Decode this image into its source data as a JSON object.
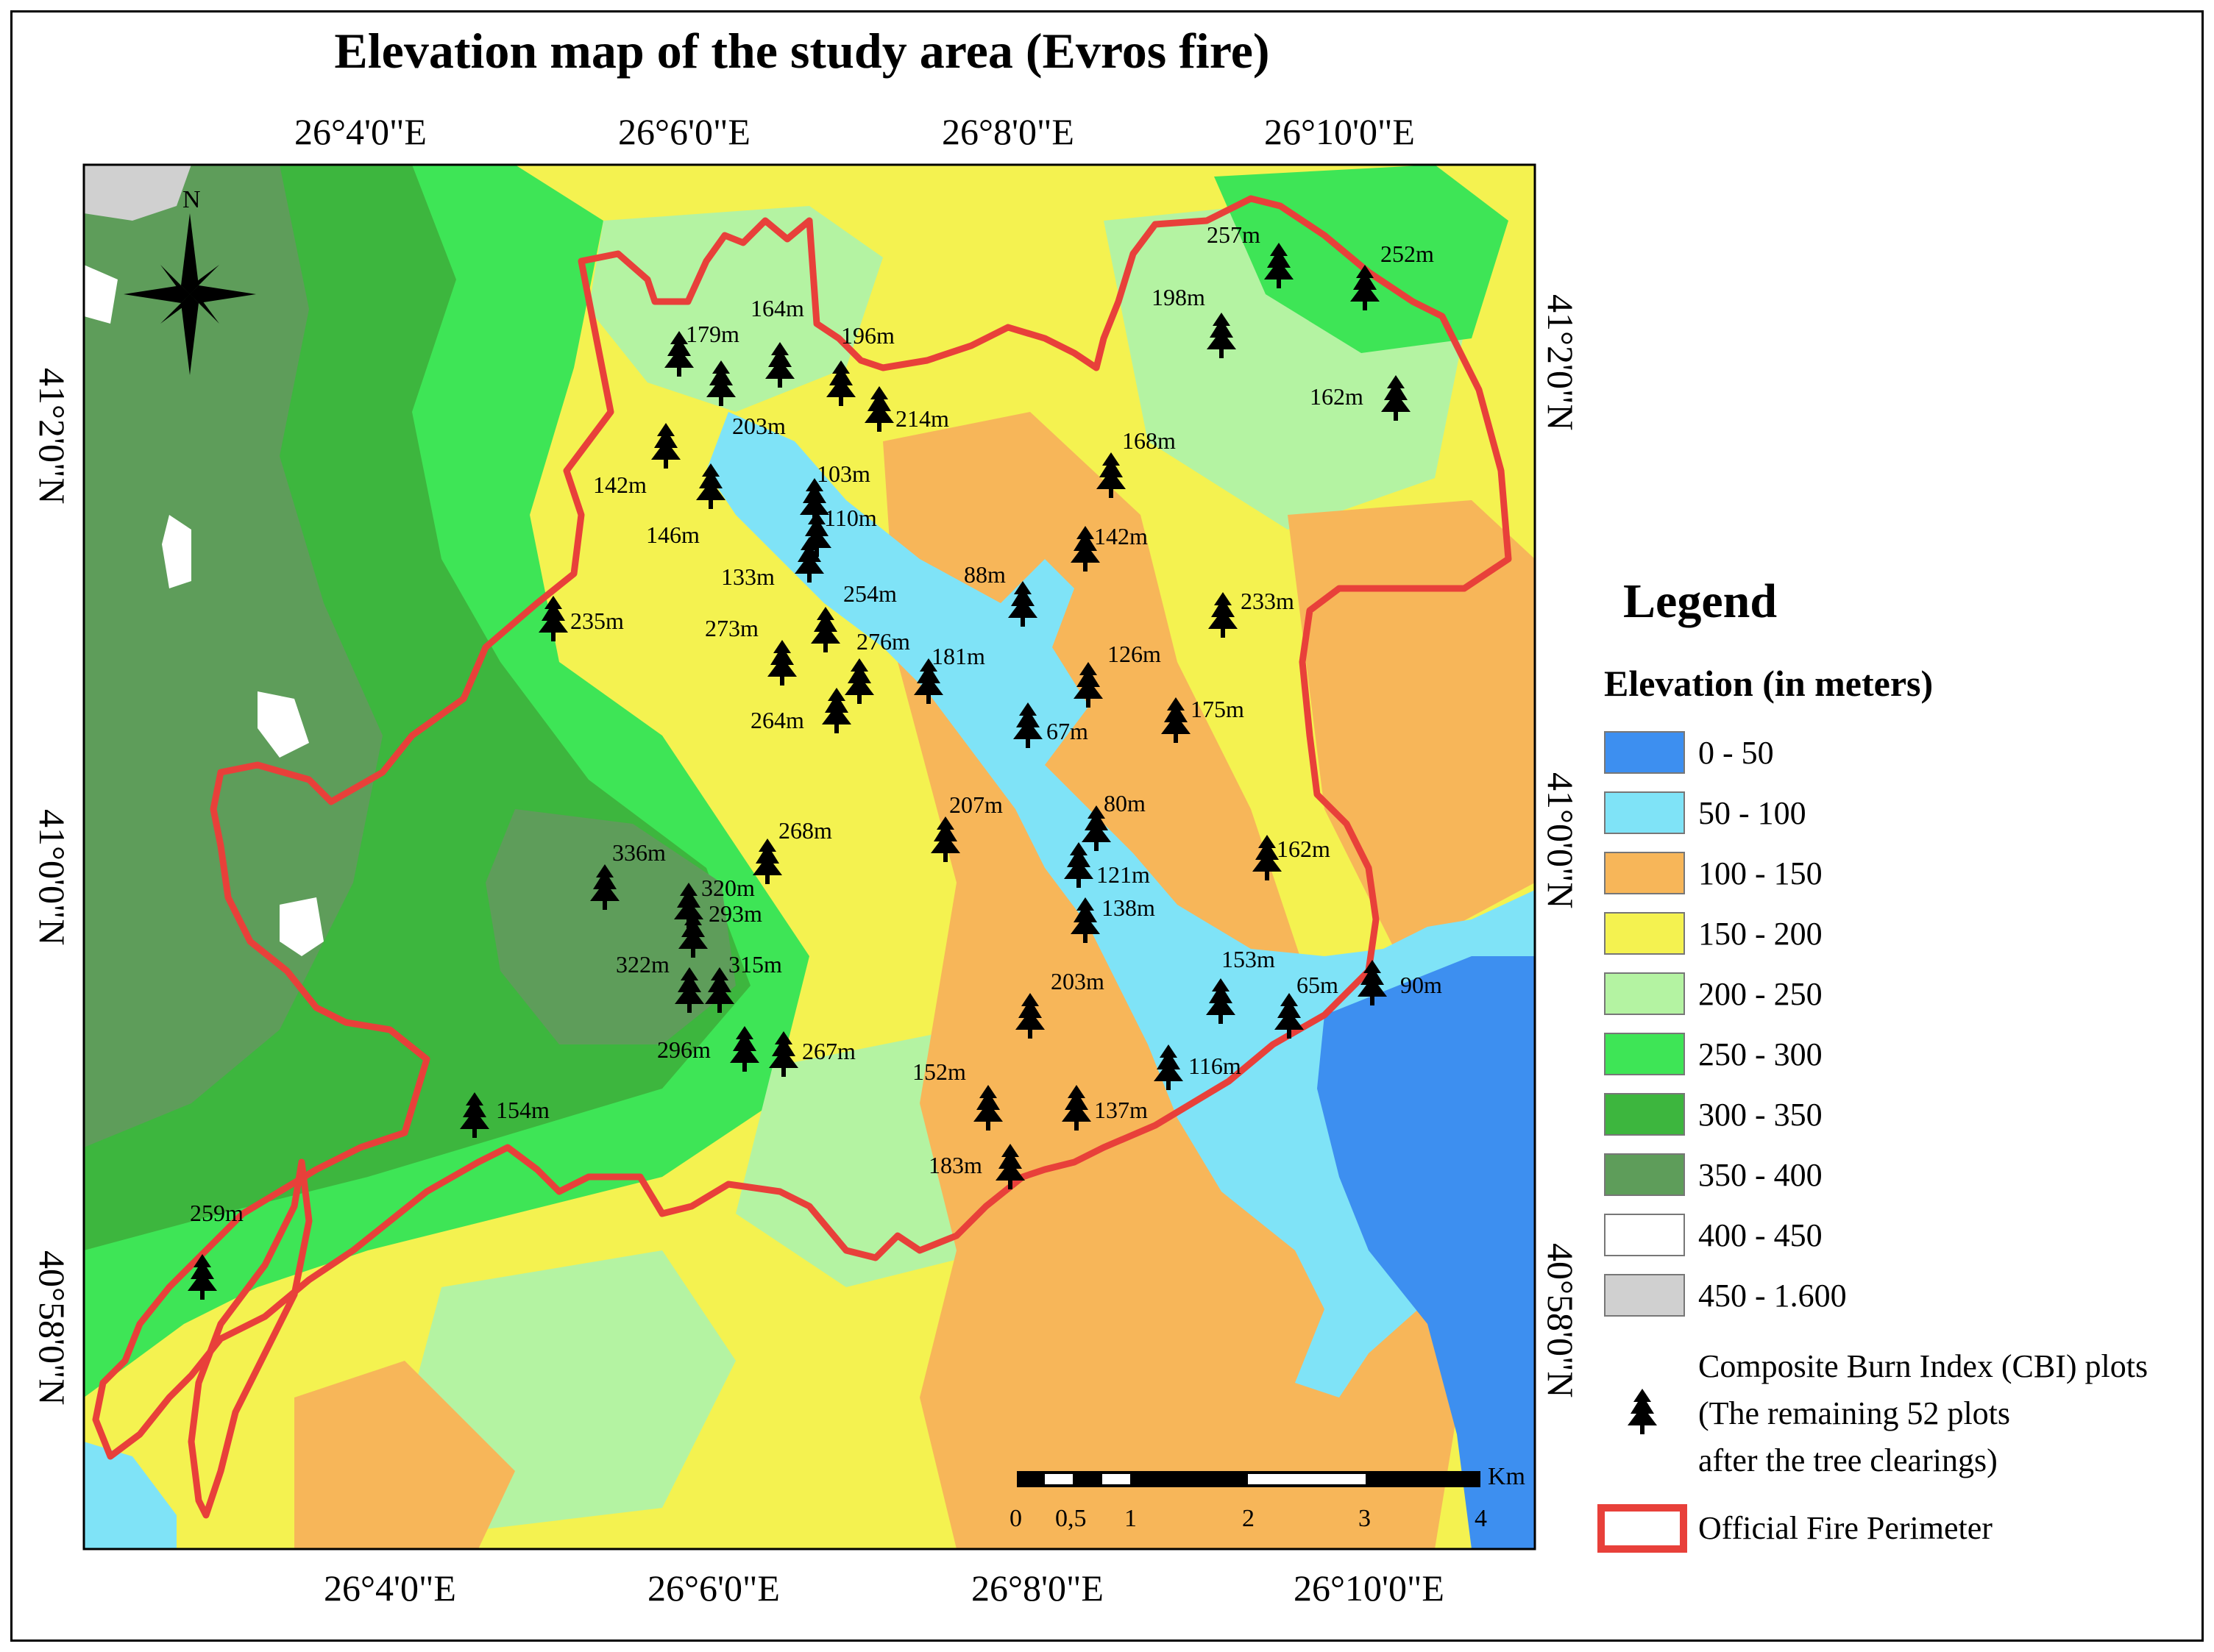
{
  "title": "Elevation map of the study area (Evros fire)",
  "top_lon_labels": [
    "26°4'0\"E",
    "26°6'0\"E",
    "26°8'0\"E",
    "26°10'0\"E"
  ],
  "bottom_lon_labels": [
    "26°4'0\"E",
    "26°6'0\"E",
    "26°8'0\"E",
    "26°10'0\"E"
  ],
  "left_lat_labels": [
    "41°2'0\"N",
    "41°0'0\"N",
    "40°58'0\"N"
  ],
  "right_lat_labels": [
    "41°2'0\"N",
    "41°0'0\"N",
    "40°58'0\"N"
  ],
  "north_arrow": {
    "label": "N",
    "icon": "north-arrow-compass-icon"
  },
  "legend": {
    "title": "Legend",
    "elevation_title": "Elevation (in meters)",
    "classes": [
      {
        "label": "0 - 50",
        "color": "#3d8ff0"
      },
      {
        "label": "50 - 100",
        "color": "#7fe3f7"
      },
      {
        "label": "100 - 150",
        "color": "#f7b659"
      },
      {
        "label": "150 - 200",
        "color": "#f4f250"
      },
      {
        "label": "200 - 250",
        "color": "#b4f3a2"
      },
      {
        "label": "250 - 300",
        "color": "#3ee556"
      },
      {
        "label": "300 - 350",
        "color": "#3db63e"
      },
      {
        "label": "350 - 400",
        "color": "#5e9d5a"
      },
      {
        "label": "400 - 450",
        "color": "#ffffff"
      },
      {
        "label": "450 - 1.600",
        "color": "#d0d0d0"
      }
    ],
    "cbi_lines": [
      "Composite Burn Index (CBI) plots",
      "(The remaining 52 plots",
      "after the tree clearings)"
    ],
    "cbi_icon": "tree-icon",
    "perimeter_label": "Official Fire Perimeter",
    "perimeter_color": "#e8403a"
  },
  "scale_bar": {
    "ticks": [
      "0",
      "0,5",
      "1",
      "2",
      "3",
      "4"
    ],
    "unit": "Km"
  },
  "plot_labels": [
    "257m",
    "252m",
    "198m",
    "179m",
    "164m",
    "196m",
    "162m",
    "203m",
    "214m",
    "168m",
    "142m",
    "103m",
    "146m",
    "110m",
    "142m",
    "133m",
    "88m",
    "233m",
    "235m",
    "254m",
    "273m",
    "276m",
    "181m",
    "126m",
    "264m",
    "67m",
    "175m",
    "207m",
    "80m",
    "268m",
    "162m",
    "336m",
    "121m",
    "320m",
    "138m",
    "293m",
    "322m",
    "315m",
    "153m",
    "65m",
    "90m",
    "203m",
    "296m",
    "267m",
    "116m",
    "152m",
    "154m",
    "137m",
    "183m",
    "259m"
  ]
}
